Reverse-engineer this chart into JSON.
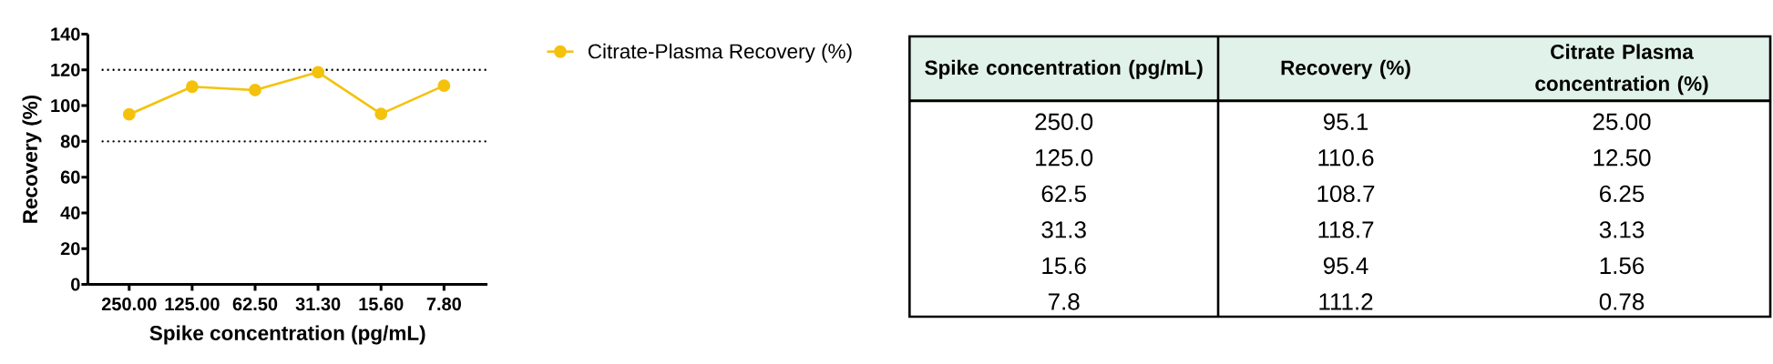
{
  "chart_data": [
    {
      "type": "line",
      "xlabel": "Spike concentration (pg/mL)",
      "ylabel": "Recovery (%)",
      "categories": [
        "250.00",
        "125.00",
        "62.50",
        "31.30",
        "15.60",
        "7.80"
      ],
      "series": [
        {
          "name": "Citrate-Plasma Recovery (%)",
          "color": "#f4c20d",
          "values": [
            95.1,
            110.6,
            108.7,
            118.7,
            95.4,
            111.2
          ]
        }
      ],
      "ylim": [
        0,
        140
      ],
      "yticks": [
        0,
        20,
        40,
        60,
        80,
        100,
        120,
        140
      ],
      "ref_lines": [
        {
          "axis": "y",
          "value": 120,
          "color": "#000000",
          "line_style": "dotted"
        },
        {
          "axis": "y",
          "value": 80,
          "color": "#000000",
          "line_style": "dotted"
        }
      ],
      "legend": "top right",
      "marker": "circle",
      "line_style": "solid"
    },
    {
      "type": "other",
      "categories": [
        "Spike concentration (pg/mL)",
        "Recovery (%)",
        "Citrate Plasma concentration (%)"
      ],
      "cell_labels": [
        [
          "250.0",
          "95.1",
          "25.00"
        ],
        [
          "125.0",
          "110.6",
          "12.50"
        ],
        [
          "62.5",
          "108.7",
          "6.25"
        ],
        [
          "31.3",
          "118.7",
          "3.13"
        ],
        [
          "15.6",
          "95.4",
          "1.56"
        ],
        [
          "7.8",
          "111.2",
          "0.78"
        ]
      ]
    }
  ]
}
